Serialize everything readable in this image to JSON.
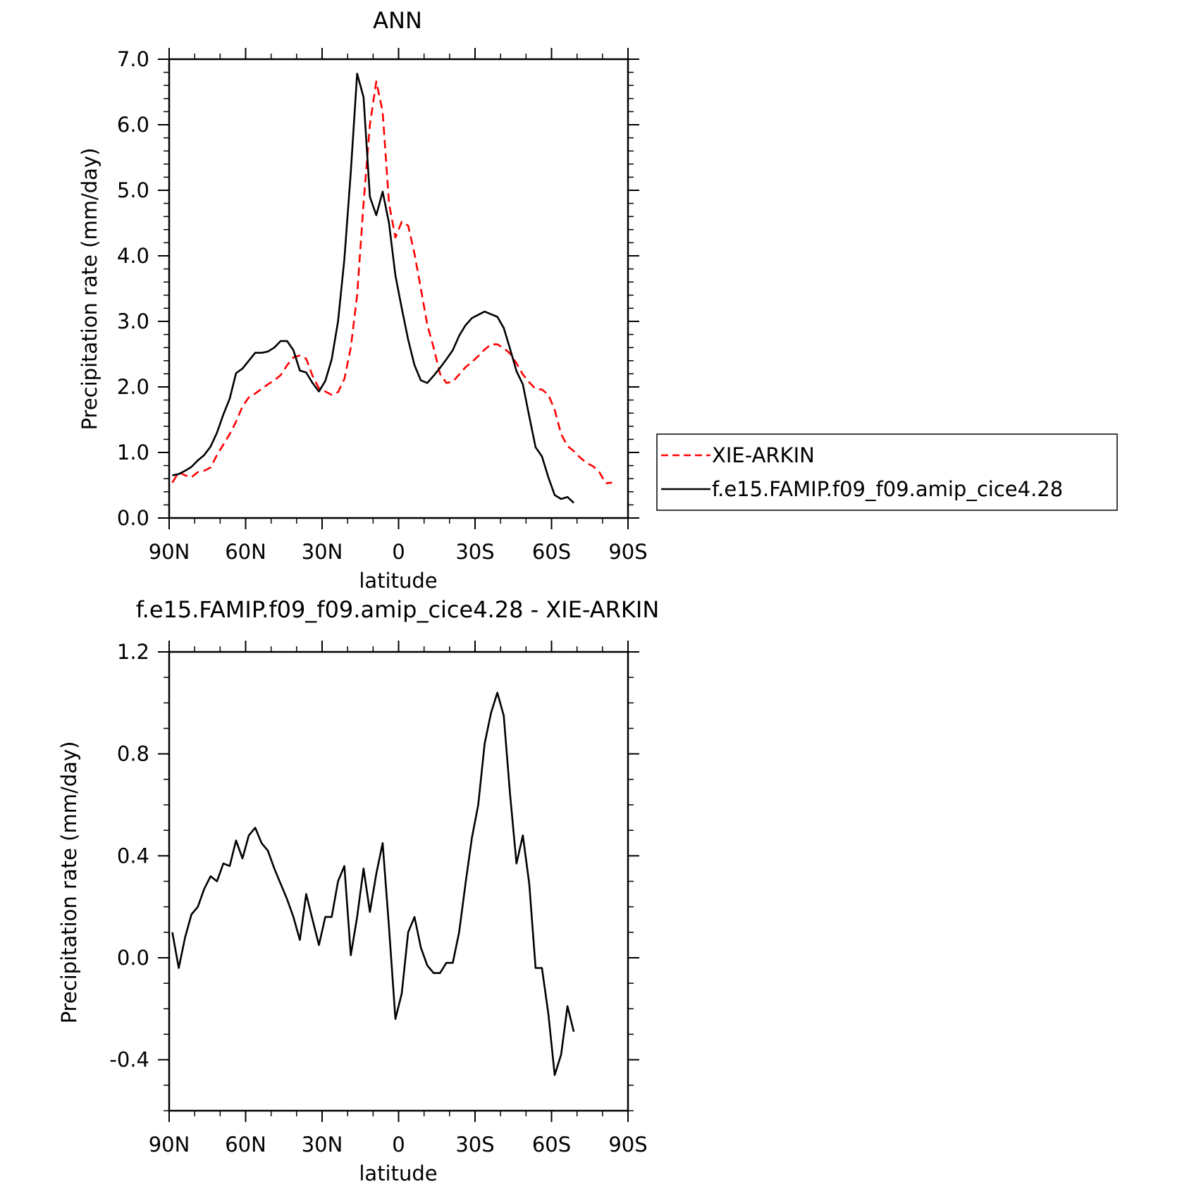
{
  "chart_data": [
    {
      "type": "line",
      "title": "ANN",
      "xlabel": "latitude",
      "ylabel": "Precipitation rate (mm/day)",
      "xlim": [
        90,
        -90
      ],
      "ylim": [
        0,
        7
      ],
      "xticks": [
        {
          "v": 90,
          "label": "90N"
        },
        {
          "v": 60,
          "label": "60N"
        },
        {
          "v": 30,
          "label": "30N"
        },
        {
          "v": 0,
          "label": "0"
        },
        {
          "v": -30,
          "label": "30S"
        },
        {
          "v": -60,
          "label": "60S"
        },
        {
          "v": -90,
          "label": "90S"
        }
      ],
      "yticks": [
        {
          "v": 0,
          "label": "0.0"
        },
        {
          "v": 1,
          "label": "1.0"
        },
        {
          "v": 2,
          "label": "2.0"
        },
        {
          "v": 3,
          "label": "3.0"
        },
        {
          "v": 4,
          "label": "4.0"
        },
        {
          "v": 5,
          "label": "5.0"
        },
        {
          "v": 6,
          "label": "6.0"
        },
        {
          "v": 7,
          "label": "7.0"
        }
      ],
      "legend_position": "right",
      "series": [
        {
          "name": "XIE-ARKIN",
          "color": "#ff0000",
          "dash": "dashed",
          "points": [
            [
              88.75,
              0.54
            ],
            [
              86.25,
              0.7
            ],
            [
              83.75,
              0.65
            ],
            [
              81.25,
              0.62
            ],
            [
              78.75,
              0.7
            ],
            [
              76.25,
              0.72
            ],
            [
              73.75,
              0.77
            ],
            [
              71.25,
              0.96
            ],
            [
              68.75,
              1.12
            ],
            [
              66.25,
              1.28
            ],
            [
              63.75,
              1.47
            ],
            [
              61.25,
              1.7
            ],
            [
              58.75,
              1.84
            ],
            [
              56.25,
              1.9
            ],
            [
              53.75,
              1.97
            ],
            [
              51.25,
              2.04
            ],
            [
              48.75,
              2.1
            ],
            [
              46.25,
              2.18
            ],
            [
              43.75,
              2.33
            ],
            [
              41.25,
              2.45
            ],
            [
              38.75,
              2.48
            ],
            [
              36.25,
              2.43
            ],
            [
              33.75,
              2.17
            ],
            [
              31.25,
              1.98
            ],
            [
              28.75,
              1.93
            ],
            [
              26.25,
              1.88
            ],
            [
              23.75,
              1.92
            ],
            [
              21.25,
              2.12
            ],
            [
              18.75,
              2.6
            ],
            [
              16.25,
              3.4
            ],
            [
              13.75,
              4.8
            ],
            [
              11.25,
              6.0
            ],
            [
              8.75,
              6.66
            ],
            [
              6.25,
              6.2
            ],
            [
              3.75,
              4.8
            ],
            [
              1.25,
              4.28
            ],
            [
              -1.25,
              4.52
            ],
            [
              -3.75,
              4.46
            ],
            [
              -6.25,
              4.03
            ],
            [
              -8.75,
              3.5
            ],
            [
              -11.25,
              2.95
            ],
            [
              -13.75,
              2.6
            ],
            [
              -16.25,
              2.2
            ],
            [
              -18.75,
              2.06
            ],
            [
              -21.25,
              2.08
            ],
            [
              -23.75,
              2.19
            ],
            [
              -26.25,
              2.3
            ],
            [
              -28.75,
              2.38
            ],
            [
              -31.25,
              2.47
            ],
            [
              -33.75,
              2.57
            ],
            [
              -36.25,
              2.65
            ],
            [
              -38.75,
              2.65
            ],
            [
              -41.25,
              2.59
            ],
            [
              -43.75,
              2.51
            ],
            [
              -46.25,
              2.36
            ],
            [
              -48.75,
              2.19
            ],
            [
              -51.25,
              2.07
            ],
            [
              -53.75,
              1.97
            ],
            [
              -56.25,
              1.96
            ],
            [
              -58.75,
              1.88
            ],
            [
              -61.25,
              1.65
            ],
            [
              -63.75,
              1.28
            ],
            [
              -66.25,
              1.1
            ],
            [
              -68.75,
              1.02
            ],
            [
              -71.25,
              0.92
            ],
            [
              -73.75,
              0.84
            ],
            [
              -76.25,
              0.79
            ],
            [
              -78.75,
              0.7
            ],
            [
              -81.25,
              0.53
            ],
            [
              -83.75,
              0.54
            ]
          ]
        },
        {
          "name": "f.e15.FAMIP.f09_f09.amip_cice4.28",
          "color": "#000000",
          "dash": "solid",
          "points": [
            [
              88.75,
              0.65
            ],
            [
              86.25,
              0.67
            ],
            [
              83.75,
              0.72
            ],
            [
              81.25,
              0.78
            ],
            [
              78.75,
              0.88
            ],
            [
              76.25,
              0.96
            ],
            [
              73.75,
              1.09
            ],
            [
              71.25,
              1.3
            ],
            [
              68.75,
              1.58
            ],
            [
              66.25,
              1.82
            ],
            [
              63.75,
              2.21
            ],
            [
              61.25,
              2.28
            ],
            [
              58.75,
              2.4
            ],
            [
              56.25,
              2.52
            ],
            [
              53.75,
              2.52
            ],
            [
              51.25,
              2.54
            ],
            [
              48.75,
              2.6
            ],
            [
              46.25,
              2.7
            ],
            [
              43.75,
              2.7
            ],
            [
              41.25,
              2.56
            ],
            [
              38.75,
              2.25
            ],
            [
              36.25,
              2.22
            ],
            [
              33.75,
              2.06
            ],
            [
              31.25,
              1.93
            ],
            [
              28.75,
              2.09
            ],
            [
              26.25,
              2.42
            ],
            [
              23.75,
              3.0
            ],
            [
              21.25,
              3.95
            ],
            [
              18.75,
              5.28
            ],
            [
              16.25,
              6.78
            ],
            [
              13.75,
              6.42
            ],
            [
              11.25,
              4.9
            ],
            [
              8.75,
              4.62
            ],
            [
              6.25,
              4.98
            ],
            [
              3.75,
              4.5
            ],
            [
              1.25,
              3.7
            ],
            [
              -1.25,
              3.2
            ],
            [
              -3.75,
              2.72
            ],
            [
              -6.25,
              2.33
            ],
            [
              -8.75,
              2.1
            ],
            [
              -11.25,
              2.06
            ],
            [
              -13.75,
              2.17
            ],
            [
              -16.25,
              2.29
            ],
            [
              -18.75,
              2.42
            ],
            [
              -21.25,
              2.56
            ],
            [
              -23.75,
              2.78
            ],
            [
              -26.25,
              2.94
            ],
            [
              -28.75,
              3.05
            ],
            [
              -31.25,
              3.1
            ],
            [
              -33.75,
              3.15
            ],
            [
              -36.25,
              3.11
            ],
            [
              -38.75,
              3.07
            ],
            [
              -41.25,
              2.9
            ],
            [
              -43.75,
              2.58
            ],
            [
              -46.25,
              2.24
            ],
            [
              -48.75,
              2.04
            ],
            [
              -51.25,
              1.55
            ],
            [
              -53.75,
              1.08
            ],
            [
              -56.25,
              0.94
            ],
            [
              -58.75,
              0.62
            ],
            [
              -61.25,
              0.35
            ],
            [
              -63.75,
              0.29
            ],
            [
              -66.25,
              0.32
            ],
            [
              -68.75,
              0.23
            ]
          ]
        }
      ]
    },
    {
      "type": "line",
      "title": "f.e15.FAMIP.f09_f09.amip_cice4.28 - XIE-ARKIN",
      "xlabel": "latitude",
      "ylabel": "Precipitation rate (mm/day)",
      "xlim": [
        90,
        -90
      ],
      "ylim": [
        -0.6,
        1.2
      ],
      "xticks": [
        {
          "v": 90,
          "label": "90N"
        },
        {
          "v": 60,
          "label": "60N"
        },
        {
          "v": 30,
          "label": "30N"
        },
        {
          "v": 0,
          "label": "0"
        },
        {
          "v": -30,
          "label": "30S"
        },
        {
          "v": -60,
          "label": "60S"
        },
        {
          "v": -90,
          "label": "90S"
        }
      ],
      "yticks": [
        {
          "v": -0.4,
          "label": "-0.4"
        },
        {
          "v": 0,
          "label": "0.0"
        },
        {
          "v": 0.4,
          "label": "0.4"
        },
        {
          "v": 0.8,
          "label": "0.8"
        },
        {
          "v": 1.2,
          "label": "1.2"
        }
      ],
      "series": [
        {
          "color": "#000000",
          "dash": "solid",
          "points": [
            [
              88.75,
              0.1
            ],
            [
              86.25,
              -0.04
            ],
            [
              83.75,
              0.08
            ],
            [
              81.25,
              0.17
            ],
            [
              78.75,
              0.2
            ],
            [
              76.25,
              0.27
            ],
            [
              73.75,
              0.32
            ],
            [
              71.25,
              0.3
            ],
            [
              68.75,
              0.37
            ],
            [
              66.25,
              0.36
            ],
            [
              63.75,
              0.46
            ],
            [
              61.25,
              0.39
            ],
            [
              58.75,
              0.48
            ],
            [
              56.25,
              0.51
            ],
            [
              53.75,
              0.45
            ],
            [
              51.25,
              0.42
            ],
            [
              48.75,
              0.35
            ],
            [
              46.25,
              0.29
            ],
            [
              43.75,
              0.23
            ],
            [
              41.25,
              0.16
            ],
            [
              38.75,
              0.07
            ],
            [
              36.25,
              0.25
            ],
            [
              33.75,
              0.15
            ],
            [
              31.25,
              0.05
            ],
            [
              28.75,
              0.16
            ],
            [
              26.25,
              0.16
            ],
            [
              23.75,
              0.3
            ],
            [
              21.25,
              0.36
            ],
            [
              18.75,
              0.01
            ],
            [
              16.25,
              0.16
            ],
            [
              13.75,
              0.35
            ],
            [
              11.25,
              0.18
            ],
            [
              8.75,
              0.33
            ],
            [
              6.25,
              0.45
            ],
            [
              3.75,
              0.12
            ],
            [
              1.25,
              -0.24
            ],
            [
              -1.25,
              -0.14
            ],
            [
              -3.75,
              0.1
            ],
            [
              -6.25,
              0.16
            ],
            [
              -8.75,
              0.04
            ],
            [
              -11.25,
              -0.03
            ],
            [
              -13.75,
              -0.06
            ],
            [
              -16.25,
              -0.06
            ],
            [
              -18.75,
              -0.02
            ],
            [
              -21.25,
              -0.02
            ],
            [
              -23.75,
              0.1
            ],
            [
              -26.25,
              0.29
            ],
            [
              -28.75,
              0.47
            ],
            [
              -31.25,
              0.6
            ],
            [
              -33.75,
              0.84
            ],
            [
              -36.25,
              0.96
            ],
            [
              -38.75,
              1.04
            ],
            [
              -41.25,
              0.95
            ],
            [
              -43.75,
              0.64
            ],
            [
              -46.25,
              0.37
            ],
            [
              -48.75,
              0.48
            ],
            [
              -51.25,
              0.29
            ],
            [
              -53.75,
              -0.04
            ],
            [
              -56.25,
              -0.04
            ],
            [
              -58.75,
              -0.22
            ],
            [
              -61.25,
              -0.46
            ],
            [
              -63.75,
              -0.38
            ],
            [
              -66.25,
              -0.19
            ],
            [
              -68.75,
              -0.29
            ]
          ]
        }
      ]
    }
  ]
}
